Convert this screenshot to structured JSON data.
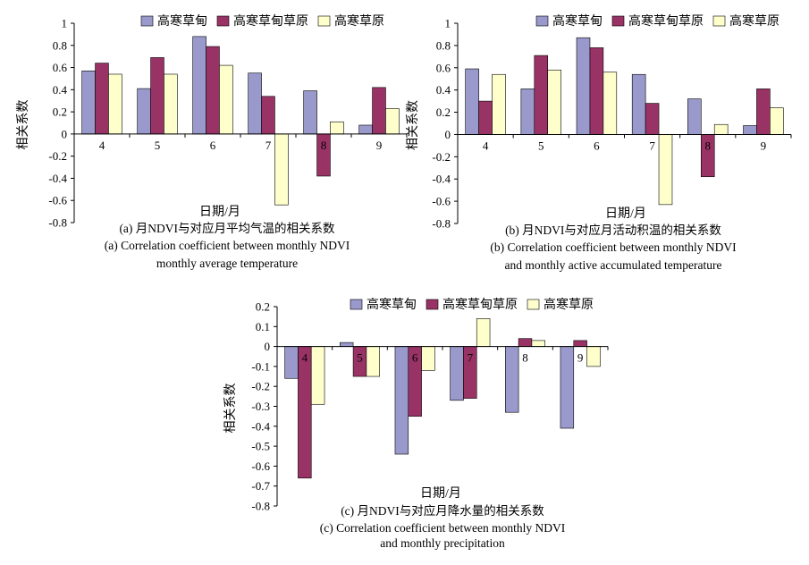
{
  "colors": {
    "s1": "#9999CC",
    "s2": "#993366",
    "s3": "#FFFFCC",
    "stroke": "#000000"
  },
  "chart_data": [
    {
      "type": "bar",
      "panel": "a",
      "categories": [
        "4",
        "5",
        "6",
        "7",
        "8",
        "9"
      ],
      "series": [
        {
          "name": "高寒草甸",
          "values": [
            0.57,
            0.41,
            0.88,
            0.55,
            0.39,
            0.08
          ]
        },
        {
          "name": "高寒草甸草原",
          "values": [
            0.64,
            0.69,
            0.79,
            0.34,
            -0.38,
            0.42
          ]
        },
        {
          "name": "高寒草原",
          "values": [
            0.54,
            0.54,
            0.62,
            -0.64,
            0.11,
            0.23
          ]
        }
      ],
      "ylim": [
        -0.8,
        1.0
      ],
      "yticks": [
        "-0.8",
        "-0.6",
        "-0.4",
        "-0.2",
        "0",
        "0.2",
        "0.4",
        "0.6",
        "0.8",
        "1"
      ],
      "ylabel": "相关系数",
      "xlabel": "日期/月",
      "caption_zh": "(a) 月NDVI与对应月平均气温的相关系数",
      "caption_en_1": "(a) Correlation coefficient between monthly NDVI",
      "caption_en_2": "monthly average temperature"
    },
    {
      "type": "bar",
      "panel": "b",
      "categories": [
        "4",
        "5",
        "6",
        "7",
        "8",
        "9"
      ],
      "series": [
        {
          "name": "高寒草甸",
          "values": [
            0.59,
            0.41,
            0.87,
            0.54,
            0.32,
            0.08
          ]
        },
        {
          "name": "高寒草甸草原",
          "values": [
            0.3,
            0.71,
            0.78,
            0.28,
            -0.38,
            0.41
          ]
        },
        {
          "name": "高寒草原",
          "values": [
            0.54,
            0.58,
            0.56,
            -0.63,
            0.09,
            0.24
          ]
        }
      ],
      "ylim": [
        -0.8,
        1.0
      ],
      "yticks": [
        "-0.8",
        "-0.6",
        "-0.4",
        "-0.2",
        "0",
        "0.2",
        "0.4",
        "0.6",
        "0.8",
        "1"
      ],
      "ylabel": "相关系数",
      "xlabel": "日期/月",
      "caption_zh": "(b) 月NDVI与对应月活动积温的相关系数",
      "caption_en_1": "(b)  Correlation coefficient between monthly NDVI",
      "caption_en_2": "and monthly active accumulated temperature"
    },
    {
      "type": "bar",
      "panel": "c",
      "categories": [
        "4",
        "5",
        "6",
        "7",
        "8",
        "9"
      ],
      "series": [
        {
          "name": "高寒草甸",
          "values": [
            -0.16,
            0.02,
            -0.54,
            -0.27,
            -0.33,
            -0.41
          ]
        },
        {
          "name": "高寒草甸草原",
          "values": [
            -0.66,
            -0.15,
            -0.35,
            -0.26,
            0.04,
            0.03
          ]
        },
        {
          "name": "高寒草原",
          "values": [
            -0.29,
            -0.15,
            -0.12,
            0.14,
            0.03,
            -0.1
          ]
        }
      ],
      "ylim": [
        -0.8,
        0.2
      ],
      "yticks": [
        "-0.8",
        "-0.7",
        "-0.6",
        "-0.5",
        "-0.4",
        "-0.3",
        "-0.2",
        "-0.1",
        "0",
        "0.1",
        "0.2"
      ],
      "ylabel": "相关系数",
      "xlabel": "日期/月",
      "caption_zh": "(c) 月NDVI与对应月降水量的相关系数",
      "caption_en_1": "(c)  Correlation coefficient between monthly NDVI",
      "caption_en_2": "and monthly precipitation"
    }
  ]
}
